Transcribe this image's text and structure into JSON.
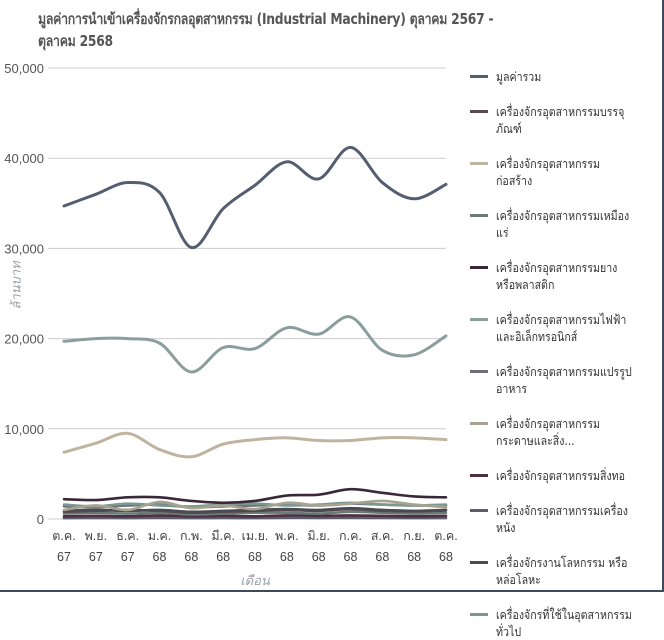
{
  "chart_data": {
    "type": "line",
    "title": "มูลค่าการนำเข้าเครื่องจักรกลอุตสาหกรรม (Industrial Machinery) ตุลาคม 2567 - ตุลาคม 2568",
    "xlabel": "เดือน",
    "ylabel": "ล้านบาท",
    "ylim": [
      0,
      50000
    ],
    "yticks": [
      "0",
      "10,000",
      "20,000",
      "30,000",
      "40,000",
      "50,000"
    ],
    "grid": true,
    "legend_position": "right",
    "categories": [
      [
        "ต.ค.",
        "67"
      ],
      [
        "พ.ย.",
        "67"
      ],
      [
        "ธ.ค.",
        "67"
      ],
      [
        "ม.ค.",
        "68"
      ],
      [
        "ก.พ.",
        "68"
      ],
      [
        "มี.ค.",
        "68"
      ],
      [
        "เม.ย.",
        "68"
      ],
      [
        "พ.ค.",
        "68"
      ],
      [
        "มิ.ย.",
        "68"
      ],
      [
        "ก.ค.",
        "68"
      ],
      [
        "ส.ค.",
        "68"
      ],
      [
        "ก.ย.",
        "68"
      ],
      [
        "ต.ค.",
        "68"
      ]
    ],
    "series": [
      {
        "name": "มูลค่ารวม",
        "color": "#555d70",
        "values": [
          34700,
          36000,
          37300,
          36200,
          30100,
          34400,
          37000,
          39600,
          37700,
          41200,
          37300,
          35500,
          37100
        ]
      },
      {
        "name": "เครื่องจักรอุตสาหกรรมบรรจุภัณฑ์",
        "color": "#5a4a4e",
        "values": [
          800,
          900,
          1000,
          900,
          700,
          800,
          900,
          1000,
          900,
          1100,
          900,
          850,
          950
        ]
      },
      {
        "name": "เครื่องจักรอุตสาหกรรมก่อสร้าง",
        "color": "#c0b4a0",
        "values": [
          7400,
          8400,
          9500,
          7700,
          6900,
          8300,
          8800,
          9000,
          8700,
          8700,
          9000,
          9000,
          8800
        ]
      },
      {
        "name": "เครื่องจักรอุตสาหกรรมเหมืองแร่",
        "color": "#6b7a78",
        "values": [
          600,
          700,
          600,
          700,
          500,
          600,
          700,
          700,
          600,
          800,
          700,
          600,
          700
        ]
      },
      {
        "name": "เครื่องจักรอุตสาหกรรมยางหรือพลาสติก",
        "color": "#3a2838",
        "values": [
          2200,
          2100,
          2400,
          2400,
          2000,
          1800,
          2000,
          2600,
          2700,
          3300,
          2900,
          2500,
          2400
        ]
      },
      {
        "name": "เครื่องจักรอุตสาหกรรมไฟฟ้าและอิเล็กทรอนิกส์",
        "color": "#8a9e9c",
        "values": [
          19700,
          20000,
          20000,
          19500,
          16300,
          19000,
          18900,
          21200,
          20500,
          22400,
          18700,
          18200,
          20300
        ]
      },
      {
        "name": "เครื่องจักรอุตสาหกรรมแปรรูปอาหาร",
        "color": "#6e6e7a",
        "values": [
          1400,
          1300,
          1500,
          1600,
          1300,
          1400,
          1500,
          1600,
          1500,
          1700,
          1600,
          1500,
          1500
        ]
      },
      {
        "name": "เครื่องจักรอุตสาหกรรมกระดาษและสิ่ง...",
        "color": "#a8a290",
        "values": [
          1000,
          1500,
          1000,
          1900,
          1200,
          1500,
          1100,
          1800,
          1500,
          1700,
          2000,
          1600,
          1300
        ]
      },
      {
        "name": "เครื่องจักรอุตสาหกรรมสิ่งทอ",
        "color": "#4a3040",
        "values": [
          300,
          350,
          300,
          400,
          300,
          350,
          300,
          400,
          350,
          400,
          350,
          300,
          350
        ]
      },
      {
        "name": "เครื่องจักรอุตสาหกรรมเครื่องหนัง",
        "color": "#5c5c6e",
        "values": [
          100,
          120,
          100,
          130,
          100,
          110,
          100,
          130,
          120,
          130,
          120,
          100,
          110
        ]
      },
      {
        "name": "เครื่องจักรงานโลหกรรม หรือหล่อโลหะ",
        "color": "#4a4a52",
        "values": [
          900,
          1000,
          900,
          1000,
          800,
          900,
          1000,
          1100,
          1000,
          1200,
          1000,
          900,
          1000
        ]
      },
      {
        "name": "เครื่องจักรที่ใช้ในอุตสาหกรรมทั่วไป",
        "color": "#7a9890",
        "values": [
          1600,
          1400,
          1700,
          1500,
          1400,
          1600,
          1700,
          1500,
          1600,
          1800,
          1600,
          1500,
          1600
        ]
      }
    ]
  }
}
